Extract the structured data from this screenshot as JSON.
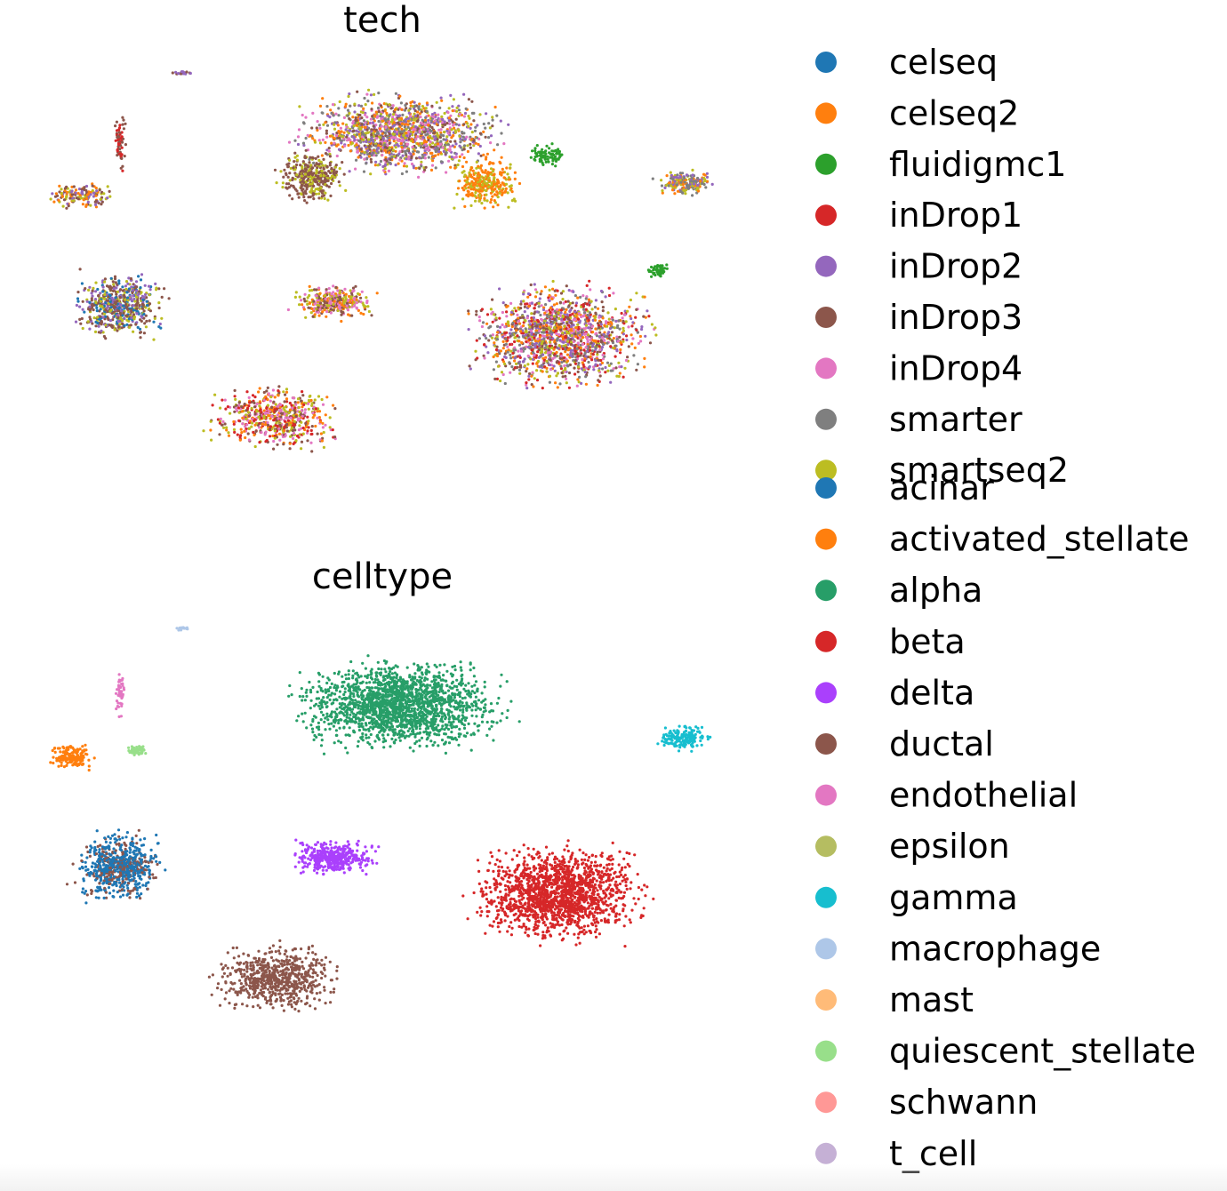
{
  "chart_data": [
    {
      "type": "scatter",
      "title": "tech",
      "xlabel": "",
      "ylabel": "",
      "grid": false,
      "axes_visible": false,
      "legend_placement": "right",
      "series": [
        {
          "name": "celseq",
          "color": "#1f77b4"
        },
        {
          "name": "celseq2",
          "color": "#ff7f0e"
        },
        {
          "name": "fluidigmc1",
          "color": "#2ca02c"
        },
        {
          "name": "inDrop1",
          "color": "#d62728"
        },
        {
          "name": "inDrop2",
          "color": "#9467bd"
        },
        {
          "name": "inDrop3",
          "color": "#8c564b"
        },
        {
          "name": "inDrop4",
          "color": "#e377c2"
        },
        {
          "name": "smarter",
          "color": "#7f7f7f"
        },
        {
          "name": "smartseq2",
          "color": "#bcbd22"
        }
      ]
    },
    {
      "type": "scatter",
      "title": "celltype",
      "xlabel": "",
      "ylabel": "",
      "grid": false,
      "axes_visible": false,
      "legend_placement": "right",
      "series": [
        {
          "name": "acinar",
          "color": "#1f77b4"
        },
        {
          "name": "activated_stellate",
          "color": "#ff7f0e"
        },
        {
          "name": "alpha",
          "color": "#279e68"
        },
        {
          "name": "beta",
          "color": "#d62728"
        },
        {
          "name": "delta",
          "color": "#aa40fc"
        },
        {
          "name": "ductal",
          "color": "#8c564b"
        },
        {
          "name": "endothelial",
          "color": "#e377c2"
        },
        {
          "name": "epsilon",
          "color": "#b5bd61"
        },
        {
          "name": "gamma",
          "color": "#17becf"
        },
        {
          "name": "macrophage",
          "color": "#aec7e8"
        },
        {
          "name": "mast",
          "color": "#ffbb78"
        },
        {
          "name": "quiescent_stellate",
          "color": "#98df8a"
        },
        {
          "name": "schwann",
          "color": "#ff9896"
        },
        {
          "name": "t_cell",
          "color": "#c5b0d5"
        }
      ]
    }
  ]
}
